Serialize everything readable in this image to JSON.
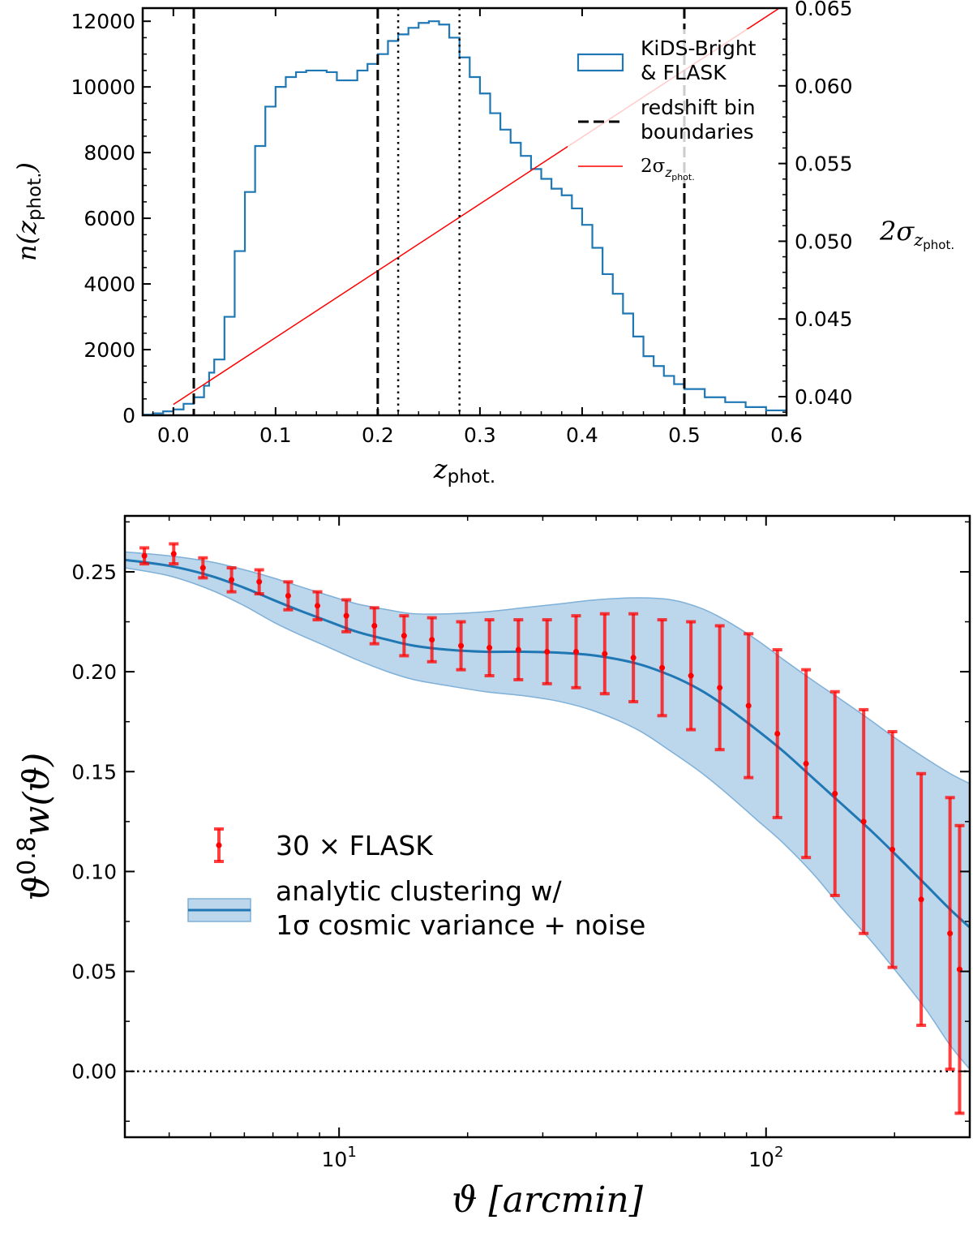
{
  "chart_data": [
    {
      "type": "histogram",
      "title": "",
      "xlabel": "z_phot.",
      "xlabel_parts": {
        "base": "z",
        "sub": "phot."
      },
      "ylabel": "n(z_phot.)",
      "ylabel_parts": {
        "pre": "n(",
        "base": "z",
        "sub": "phot.",
        "post": ")"
      },
      "ylabel_right": "2σ_z_phot.",
      "ylabel_right_parts": {
        "pre": "2σ",
        "sub": "z",
        "subsub": "phot."
      },
      "xlim": [
        -0.03,
        0.6
      ],
      "ylim": [
        0,
        12400
      ],
      "ylim_right": [
        0.0388,
        0.065
      ],
      "xticks": [
        0.0,
        0.1,
        0.2,
        0.3,
        0.4,
        0.5,
        0.6
      ],
      "xtick_labels": [
        "0.0",
        "0.1",
        "0.2",
        "0.3",
        "0.4",
        "0.5",
        "0.6"
      ],
      "yticks": [
        0,
        2000,
        4000,
        6000,
        8000,
        10000,
        12000
      ],
      "ytick_labels": [
        "0",
        "2000",
        "4000",
        "6000",
        "8000",
        "10000",
        "12000"
      ],
      "yticks_right": [
        0.04,
        0.045,
        0.05,
        0.055,
        0.06,
        0.065
      ],
      "ytick_labels_right": [
        "0.040",
        "0.045",
        "0.050",
        "0.055",
        "0.060",
        "0.065"
      ],
      "series": [
        {
          "name": "KiDS-Bright & FLASK",
          "kind": "step-histogram",
          "color": "#1f77b4",
          "x": [
            -0.03,
            -0.02,
            -0.01,
            0.0,
            0.01,
            0.02,
            0.03,
            0.035,
            0.04,
            0.05,
            0.06,
            0.07,
            0.08,
            0.09,
            0.1,
            0.11,
            0.12,
            0.13,
            0.14,
            0.15,
            0.16,
            0.17,
            0.18,
            0.19,
            0.2,
            0.21,
            0.22,
            0.23,
            0.24,
            0.25,
            0.26,
            0.27,
            0.28,
            0.29,
            0.3,
            0.31,
            0.32,
            0.33,
            0.34,
            0.35,
            0.36,
            0.37,
            0.38,
            0.39,
            0.4,
            0.41,
            0.42,
            0.43,
            0.44,
            0.45,
            0.46,
            0.47,
            0.48,
            0.49,
            0.5,
            0.52,
            0.54,
            0.56,
            0.58,
            0.6
          ],
          "y": [
            20,
            60,
            120,
            180,
            350,
            550,
            900,
            1300,
            1700,
            3000,
            5000,
            6800,
            8200,
            9400,
            10000,
            10300,
            10450,
            10500,
            10500,
            10450,
            10200,
            10200,
            10500,
            10700,
            11000,
            11400,
            11600,
            11800,
            11950,
            12000,
            11900,
            11500,
            10900,
            10300,
            9800,
            9200,
            8700,
            8300,
            7900,
            7500,
            7200,
            6900,
            6700,
            6300,
            5800,
            5100,
            4300,
            3700,
            3100,
            2400,
            1800,
            1500,
            1200,
            950,
            800,
            550,
            400,
            250,
            150,
            80
          ]
        },
        {
          "name": "2σ_z_phot.",
          "label_parts": {
            "pre": "2σ",
            "sub": "z",
            "subsub": "phot."
          },
          "kind": "line",
          "axis": "right",
          "color": "#ff0000",
          "x": [
            0.0,
            0.6
          ],
          "y": [
            0.0395,
            0.0653
          ]
        }
      ],
      "vlines_dashed": [
        0.02,
        0.2,
        0.5
      ],
      "vlines_dotted": [
        0.22,
        0.28
      ],
      "legend": [
        "KiDS-Bright\n& FLASK",
        "redshift bin\nboundaries",
        "2σ_z_phot."
      ],
      "legend_lines": [
        [
          "KiDS-Bright",
          "& FLASK"
        ],
        [
          "redshift bin",
          "boundaries"
        ]
      ],
      "legend_position": "top-right"
    },
    {
      "type": "line+errorbar",
      "title": "",
      "xlabel": "ϑ [arcmin]",
      "ylabel": "ϑ^0.8 w(ϑ)",
      "ylabel_parts": {
        "base": "ϑ",
        "sup": "0.8",
        "rest": "w(ϑ)"
      },
      "xscale": "log",
      "xlim": [
        3.15,
        300
      ],
      "ylim": [
        -0.033,
        0.278
      ],
      "xticks": [
        10,
        100
      ],
      "xtick_labels": [
        {
          "base": "10",
          "exp": "1"
        },
        {
          "base": "10",
          "exp": "2"
        }
      ],
      "yticks": [
        0.0,
        0.05,
        0.1,
        0.15,
        0.2,
        0.25
      ],
      "ytick_labels": [
        "0.00",
        "0.05",
        "0.10",
        "0.15",
        "0.20",
        "0.25"
      ],
      "hline_dotted": 0.0,
      "series": [
        {
          "name": "analytic clustering w/ 1σ cosmic variance + noise",
          "kind": "line-with-band",
          "color": "#1f77b4",
          "band_color": "#a6c8e4",
          "x": [
            3.15,
            4,
            5,
            6,
            7,
            8,
            9.5,
            11,
            13,
            15,
            18,
            22,
            27,
            33,
            40,
            50,
            60,
            70,
            80,
            95,
            110,
            130,
            150,
            175,
            200,
            235,
            270,
            300
          ],
          "y": [
            0.256,
            0.253,
            0.248,
            0.242,
            0.236,
            0.231,
            0.225,
            0.22,
            0.216,
            0.213,
            0.211,
            0.21,
            0.21,
            0.2095,
            0.208,
            0.204,
            0.198,
            0.191,
            0.183,
            0.171,
            0.16,
            0.146,
            0.134,
            0.121,
            0.109,
            0.094,
            0.081,
            0.072
          ],
          "upper": [
            0.26,
            0.258,
            0.255,
            0.251,
            0.247,
            0.243,
            0.238,
            0.234,
            0.231,
            0.229,
            0.229,
            0.23,
            0.232,
            0.234,
            0.236,
            0.237,
            0.236,
            0.232,
            0.226,
            0.216,
            0.206,
            0.195,
            0.186,
            0.176,
            0.167,
            0.157,
            0.149,
            0.144
          ],
          "lower": [
            0.252,
            0.248,
            0.241,
            0.233,
            0.225,
            0.219,
            0.212,
            0.206,
            0.2,
            0.196,
            0.193,
            0.19,
            0.188,
            0.185,
            0.18,
            0.171,
            0.16,
            0.15,
            0.14,
            0.126,
            0.114,
            0.098,
            0.082,
            0.066,
            0.051,
            0.032,
            0.013,
            0.001
          ]
        },
        {
          "name": "30 × FLASK",
          "kind": "errorbar",
          "color": "#ff0000",
          "x": [
            3.5,
            4.1,
            4.8,
            5.6,
            6.5,
            7.6,
            8.9,
            10.4,
            12.1,
            14.2,
            16.5,
            19.3,
            22.5,
            26.3,
            30.7,
            35.9,
            41.9,
            48.9,
            57.1,
            66.7,
            77.9,
            91.0,
            106.3,
            124.1,
            145.0,
            169.3,
            197.7,
            230.9,
            269.7
          ],
          "y": [
            0.258,
            0.259,
            0.252,
            0.246,
            0.245,
            0.238,
            0.233,
            0.228,
            0.223,
            0.218,
            0.216,
            0.213,
            0.212,
            0.211,
            0.21,
            0.21,
            0.209,
            0.207,
            0.202,
            0.198,
            0.192,
            0.183,
            0.169,
            0.154,
            0.139,
            0.125,
            0.111,
            0.086,
            0.069
          ],
          "yerr": [
            0.004,
            0.005,
            0.005,
            0.006,
            0.006,
            0.007,
            0.007,
            0.008,
            0.009,
            0.01,
            0.011,
            0.012,
            0.014,
            0.015,
            0.016,
            0.018,
            0.02,
            0.022,
            0.024,
            0.027,
            0.031,
            0.036,
            0.042,
            0.047,
            0.051,
            0.056,
            0.059,
            0.063,
            0.068
          ]
        }
      ],
      "extra_point": {
        "x": 284,
        "y": 0.051,
        "yerr": 0.072
      },
      "legend": [
        "30 × FLASK",
        "analytic clustering w/\n1σ cosmic variance + noise"
      ],
      "legend_lines": [
        [
          "analytic clustering w/",
          "1σ cosmic variance + noise"
        ]
      ],
      "legend_position": "center-left"
    }
  ]
}
